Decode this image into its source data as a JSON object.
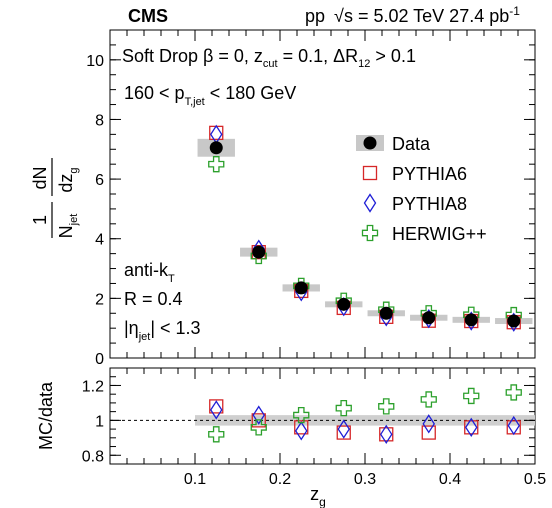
{
  "header": {
    "cms": "CMS",
    "energy_pre": "pp",
    "energy_post": "s = 5.02 TeV  27.4 pb",
    "lumi_exp": "-1"
  },
  "annotations": {
    "selection": {
      "p1": "Soft Drop β = 0, z",
      "s1": "cut",
      "p2": " = 0.1, ΔR",
      "s2": "12",
      "p3": " > 0.1"
    },
    "pt_range": {
      "p1": "160 < p",
      "s1": "T,jet",
      "p2": " < 180 GeV"
    },
    "algo": {
      "p1": "anti-k",
      "s1": "T"
    },
    "radius": "R = 0.4",
    "eta": {
      "p1": "|η",
      "s1": "jet",
      "p2": "| < 1.3"
    }
  },
  "chart_data": [
    {
      "type": "scatter",
      "ylabel": {
        "num1": "1",
        "den1": "N",
        "den1_sub": "jet",
        "num2": "dN",
        "den2": "dz",
        "den2_sub": "g"
      },
      "ylim": [
        0,
        11
      ],
      "yticks": [
        "0",
        "2",
        "4",
        "6",
        "8",
        "10"
      ],
      "x": [
        0.125,
        0.175,
        0.225,
        0.275,
        0.325,
        0.375,
        0.425,
        0.475
      ],
      "data_band_halfwidth": [
        0.3,
        0.15,
        0.12,
        0.1,
        0.1,
        0.1,
        0.1,
        0.1
      ],
      "series": [
        {
          "name": "Data",
          "marker": "circle",
          "color": "#000000",
          "values": [
            7.05,
            3.55,
            2.35,
            1.8,
            1.5,
            1.35,
            1.28,
            1.24
          ]
        },
        {
          "name": "PYTHIA6",
          "marker": "square",
          "color": "#d62728",
          "values": [
            7.55,
            3.55,
            2.25,
            1.68,
            1.38,
            1.25,
            1.24,
            1.2
          ]
        },
        {
          "name": "PYTHIA8",
          "marker": "diamond",
          "color": "#1f1fd6",
          "values": [
            7.5,
            3.65,
            2.22,
            1.72,
            1.38,
            1.32,
            1.24,
            1.2
          ]
        },
        {
          "name": "HERWIG++",
          "marker": "cross",
          "color": "#2ca02c",
          "values": [
            6.5,
            3.42,
            2.42,
            1.92,
            1.62,
            1.5,
            1.45,
            1.44
          ]
        }
      ],
      "legend_position": "right",
      "legend_data_label": "Data"
    },
    {
      "type": "scatter",
      "xlabel": {
        "main": "z",
        "sub": "g"
      },
      "ylabel": "MC/data",
      "xlim": [
        0.0,
        0.5
      ],
      "ylim": [
        0.75,
        1.3
      ],
      "xticks": [
        "0.1",
        "0.2",
        "0.3",
        "0.4",
        "0.5"
      ],
      "yticks": [
        "0.8",
        "1",
        "1.2"
      ],
      "reference_line": 1.0,
      "band_halfheight": 0.03,
      "x": [
        0.125,
        0.175,
        0.225,
        0.275,
        0.325,
        0.375,
        0.425,
        0.475
      ],
      "series": [
        {
          "name": "PYTHIA6",
          "marker": "square",
          "color": "#d62728",
          "values": [
            1.08,
            1.0,
            0.96,
            0.93,
            0.92,
            0.93,
            0.96,
            0.96
          ]
        },
        {
          "name": "PYTHIA8",
          "marker": "diamond",
          "color": "#1f1fd6",
          "values": [
            1.06,
            1.03,
            0.94,
            0.95,
            0.92,
            0.98,
            0.96,
            0.97
          ]
        },
        {
          "name": "HERWIG++",
          "marker": "cross",
          "color": "#2ca02c",
          "values": [
            0.92,
            0.96,
            1.03,
            1.07,
            1.08,
            1.12,
            1.14,
            1.16
          ]
        }
      ]
    }
  ]
}
